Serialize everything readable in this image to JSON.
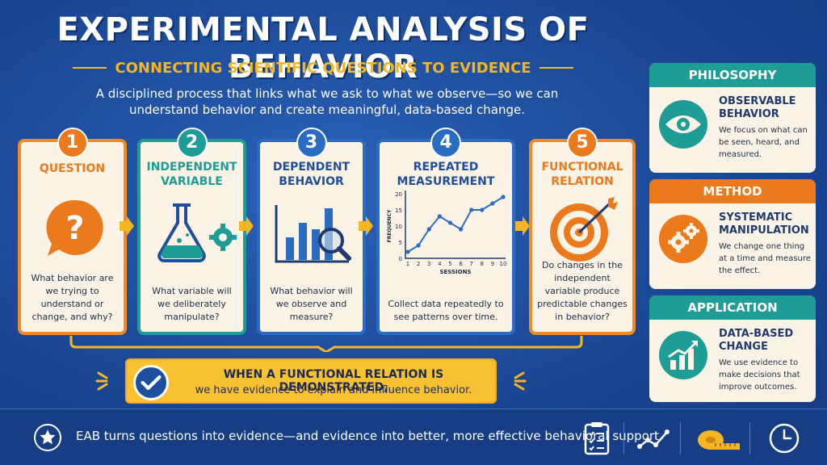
{
  "title": "EXPERIMENTAL ANALYSIS OF BEHAVIOR",
  "subtitle": "CONNECTING SCIENTIFIC QUESTIONS TO EVIDENCE",
  "intro": "A disciplined process that links what we ask to what we observe—so we can understand behavior and create meaningful, data-based change.",
  "steps": [
    {
      "number": "1",
      "title": "QUESTION",
      "text": "What behavior are we trying to understand or change, and why?"
    },
    {
      "number": "2",
      "title": "INDEPENDENT VARIABLE",
      "text": "What variable will we deliberately manipulate?"
    },
    {
      "number": "3",
      "title": "DEPENDENT BEHAVIOR",
      "text": "What behavior will we observe and measure?"
    },
    {
      "number": "4",
      "title": "REPEATED MEASUREMENT",
      "text": "Collect data repeatedly to see patterns over time."
    },
    {
      "number": "5",
      "title": "FUNCTIONAL RELATION",
      "text": "Do changes in the independent variable produce predictable changes in behavior?"
    }
  ],
  "callout": {
    "title": "WHEN A FUNCTIONAL RELATION IS DEMONSTRATED,",
    "text": "we have evidence to explain and influence behavior."
  },
  "panels": [
    {
      "header": "PHILOSOPHY",
      "title": "OBSERVABLE BEHAVIOR",
      "text": "We focus on what can be seen, heard, and measured."
    },
    {
      "header": "METHOD",
      "title": "SYSTEMATIC MANIPULATION",
      "text": "We change one thing at a time and measure the effect."
    },
    {
      "header": "APPLICATION",
      "title": "DATA-BASED CHANGE",
      "text": "We use evidence to make decisions that improve outcomes."
    }
  ],
  "footer": {
    "text": "EAB turns questions into evidence—and evidence into better, more effective behavioral support."
  },
  "chart_data": {
    "type": "line",
    "xlabel": "SESSIONS",
    "ylabel": "FREQUENCY",
    "x": [
      1,
      2,
      3,
      4,
      5,
      6,
      7,
      8,
      9,
      10
    ],
    "y": [
      2,
      4,
      9,
      13,
      11,
      9,
      15,
      15,
      17,
      19
    ],
    "xticks": [
      "1",
      "2",
      "3",
      "4",
      "5",
      "6",
      "7",
      "8",
      "9",
      "10"
    ],
    "yticks": [
      "0",
      "5",
      "10",
      "15",
      "20"
    ],
    "xlim": [
      1,
      10
    ],
    "ylim": [
      0,
      20
    ]
  },
  "colors": {
    "orange": "#ea7a1c",
    "teal": "#1e9c96",
    "blue": "#2a6cc4",
    "navy": "#1d4fa0",
    "gold": "#f5b622",
    "cream": "#fbf4e6"
  }
}
